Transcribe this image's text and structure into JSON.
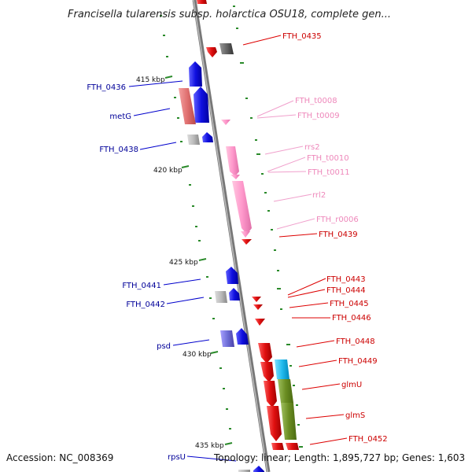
{
  "title": "Francisella tularensis subsp. holarctica OSU18, complete gen...",
  "footer": {
    "accession": "Accession: NC_008369",
    "summary": "Topology: linear; Length: 1,895,727 bp; Genes: 1,603"
  },
  "kbp_ticks": [
    "415 kbp",
    "420 kbp",
    "425 kbp",
    "430 kbp",
    "435 kbp"
  ],
  "colors": {
    "forward_gene": "#1010e0",
    "reverse_gene": "#e01010",
    "rna": "#ff99cc",
    "pseudo": "#bbbbbb",
    "axis": "#888888",
    "tick": "#2a8a2a",
    "label_forward": "#000099",
    "label_reverse": "#cc0000",
    "label_rna": "#ee88bb"
  },
  "left_labels": [
    {
      "text": "FTH_0436"
    },
    {
      "text": "metG"
    },
    {
      "text": "FTH_0438"
    },
    {
      "text": "FTH_0441"
    },
    {
      "text": "FTH_0442"
    },
    {
      "text": "psd"
    },
    {
      "text": "rpsU"
    }
  ],
  "right_labels": [
    {
      "text": "FTH_0435",
      "kind": "reverse"
    },
    {
      "text": "FTH_t0008",
      "kind": "rna"
    },
    {
      "text": "FTH_t0009",
      "kind": "rna"
    },
    {
      "text": "rrs2",
      "kind": "rna"
    },
    {
      "text": "FTH_t0010",
      "kind": "rna"
    },
    {
      "text": "FTH_t0011",
      "kind": "rna"
    },
    {
      "text": "rrl2",
      "kind": "rna"
    },
    {
      "text": "FTH_r0006",
      "kind": "rna"
    },
    {
      "text": "FTH_0439",
      "kind": "reverse"
    },
    {
      "text": "FTH_0443",
      "kind": "reverse"
    },
    {
      "text": "FTH_0444",
      "kind": "reverse"
    },
    {
      "text": "FTH_0445",
      "kind": "reverse"
    },
    {
      "text": "FTH_0446",
      "kind": "reverse"
    },
    {
      "text": "FTH_0448",
      "kind": "reverse"
    },
    {
      "text": "FTH_0449",
      "kind": "reverse"
    },
    {
      "text": "glmU",
      "kind": "reverse"
    },
    {
      "text": "glmS",
      "kind": "reverse"
    },
    {
      "text": "FTH_0452",
      "kind": "reverse"
    }
  ]
}
